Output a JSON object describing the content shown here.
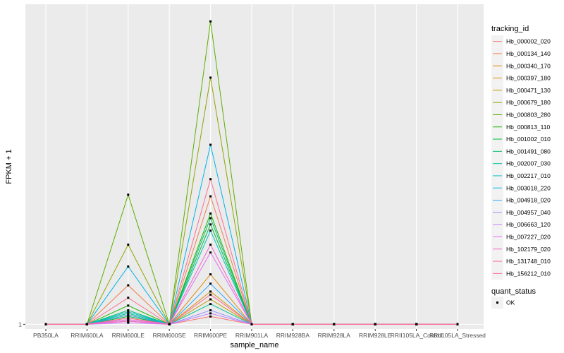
{
  "chart_data": {
    "type": "line",
    "xlabel": "sample_name",
    "ylabel": "FPKM + 1",
    "categories": [
      "PB350LA",
      "RRIM600LA",
      "RRIM600LE",
      "RRIM600SE",
      "RRIM600PE",
      "RRIM901LA",
      "RRIM928BA",
      "RRIM928LA",
      "RRIM928LE",
      "RRII105LA_Control",
      "RRII105LA_Stressed"
    ],
    "y_ticks": [
      {
        "value": 1,
        "label": "1"
      }
    ],
    "ylim": [
      0.7,
      21.5
    ],
    "grid": true,
    "legend_placement": "right",
    "legend_title": "tracking_id",
    "point_legend_title": "quant_status",
    "point_legend_label": "OK",
    "series": [
      {
        "name": "Hb_000002_020",
        "color": "#F8766D",
        "values": [
          1,
          1,
          1.3,
          1,
          1.5,
          1,
          1,
          1,
          1,
          1,
          1
        ]
      },
      {
        "name": "Hb_000134_140",
        "color": "#F07E4C",
        "values": [
          1,
          1,
          3.5,
          1,
          9.2,
          1,
          1,
          1,
          1,
          1,
          1
        ]
      },
      {
        "name": "Hb_000340_170",
        "color": "#E48800",
        "values": [
          1,
          1,
          1.6,
          1,
          4.2,
          1,
          1,
          1,
          1,
          1,
          1
        ]
      },
      {
        "name": "Hb_000397_180",
        "color": "#D59100",
        "values": [
          1,
          1,
          1.4,
          1,
          3.1,
          1,
          1,
          1,
          1,
          1,
          1
        ]
      },
      {
        "name": "Hb_000471_130",
        "color": "#C29A00",
        "values": [
          1,
          1,
          1.2,
          1,
          2.6,
          1,
          1,
          1,
          1,
          1,
          1
        ]
      },
      {
        "name": "Hb_000679_180",
        "color": "#8FA500",
        "values": [
          1,
          1,
          6.1,
          1,
          16.8,
          1,
          1,
          1,
          1,
          1,
          1
        ]
      },
      {
        "name": "Hb_000803_280",
        "color": "#5BAE00",
        "values": [
          1,
          1,
          9.3,
          1,
          20.4,
          1,
          1,
          1,
          1,
          1,
          1
        ]
      },
      {
        "name": "Hb_000813_110",
        "color": "#1EB400",
        "values": [
          1,
          1,
          2.2,
          1,
          8.1,
          1,
          1,
          1,
          1,
          1,
          1
        ]
      },
      {
        "name": "Hb_001002_010",
        "color": "#00BA38",
        "values": [
          1,
          1,
          1.5,
          1,
          7.4,
          1,
          1,
          1,
          1,
          1,
          1
        ]
      },
      {
        "name": "Hb_001491_080",
        "color": "#00BE6C",
        "values": [
          1,
          1,
          1.9,
          1,
          7.8,
          1,
          1,
          1,
          1,
          1,
          1
        ]
      },
      {
        "name": "Hb_002007_030",
        "color": "#00C094",
        "values": [
          1,
          1,
          1.7,
          1,
          2.3,
          1,
          1,
          1,
          1,
          1,
          1
        ]
      },
      {
        "name": "Hb_002217_010",
        "color": "#00BFC4",
        "values": [
          1,
          1,
          1.8,
          1,
          7.0,
          1,
          1,
          1,
          1,
          1,
          1
        ]
      },
      {
        "name": "Hb_003018_220",
        "color": "#00B4E8",
        "values": [
          1,
          1,
          4.7,
          1,
          12.5,
          1,
          1,
          1,
          1,
          1,
          1
        ]
      },
      {
        "name": "Hb_004918_020",
        "color": "#2BA8FF",
        "values": [
          1,
          1,
          1.6,
          1,
          3.6,
          1,
          1,
          1,
          1,
          1,
          1
        ]
      },
      {
        "name": "Hb_004957_040",
        "color": "#9590FF",
        "values": [
          1,
          1,
          1.3,
          1,
          1.9,
          1,
          1,
          1,
          1,
          1,
          1
        ]
      },
      {
        "name": "Hb_006663_120",
        "color": "#C77CFF",
        "values": [
          1,
          1,
          1.1,
          1,
          1.7,
          1,
          1,
          1,
          1,
          1,
          1
        ]
      },
      {
        "name": "Hb_007227_020",
        "color": "#E76BF3",
        "values": [
          1,
          1,
          1.3,
          1,
          5.6,
          1,
          1,
          1,
          1,
          1,
          1
        ]
      },
      {
        "name": "Hb_102179_020",
        "color": "#F763C9",
        "values": [
          1,
          1,
          1.2,
          1,
          6.1,
          1,
          1,
          1,
          1,
          1,
          1
        ]
      },
      {
        "name": "Hb_131748_010",
        "color": "#FF6A98",
        "values": [
          1,
          1,
          1.4,
          1,
          2.9,
          1,
          1,
          1,
          1,
          1,
          1
        ]
      },
      {
        "name": "Hb_156212_010",
        "color": "#FF6C91",
        "values": [
          1,
          1,
          2.7,
          1,
          10.3,
          1,
          1,
          1,
          1,
          1,
          1
        ]
      }
    ]
  }
}
